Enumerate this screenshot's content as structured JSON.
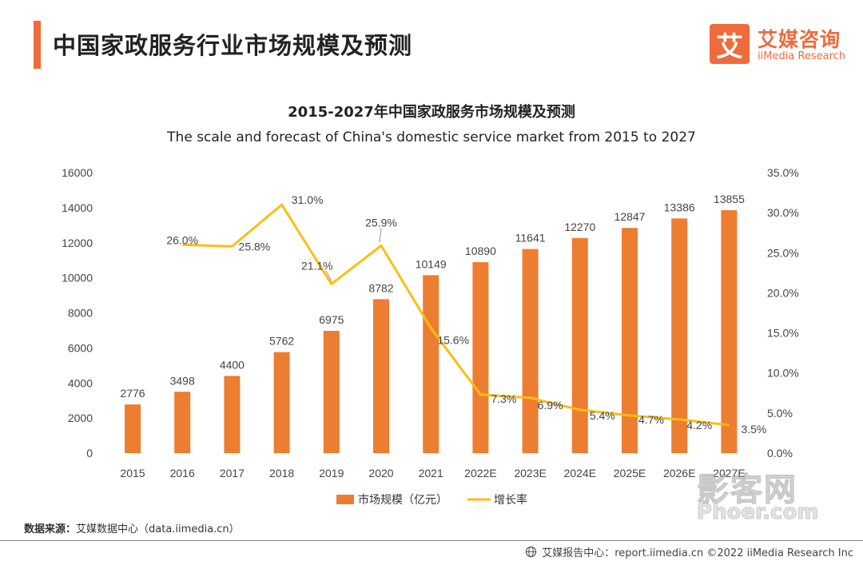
{
  "header": {
    "title": "中国家政服务行业市场规模及预测",
    "logo_mark": "艾",
    "logo_cn": "艾媒咨询",
    "logo_en": "iiMedia Research"
  },
  "colors": {
    "accent": "#ee6b3b",
    "bar": "#ed7d31",
    "line": "#fbbe13"
  },
  "chart_data": {
    "type": "bar",
    "title": "2015-2027年中国家政服务市场规模及预测",
    "subtitle": "The scale and forecast of China's domestic service market from 2015 to 2027",
    "categories": [
      "2015",
      "2016",
      "2017",
      "2018",
      "2019",
      "2020",
      "2021",
      "2022E",
      "2023E",
      "2024E",
      "2025E",
      "2026E",
      "2027E"
    ],
    "series": [
      {
        "name": "市场规模（亿元）",
        "type": "bar",
        "axis": "left",
        "values": [
          2776,
          3498,
          4400,
          5762,
          6975,
          8782,
          10149,
          10890,
          11641,
          12270,
          12847,
          13386,
          13855
        ],
        "labels": [
          "2776",
          "3498",
          "4400",
          "5762",
          "6975",
          "8782",
          "10149",
          "10890",
          "11641",
          "12270",
          "12847",
          "13386",
          "13855"
        ]
      },
      {
        "name": "增长率",
        "type": "line",
        "axis": "right",
        "values": [
          null,
          26.0,
          25.8,
          31.0,
          21.1,
          25.9,
          15.6,
          7.3,
          6.9,
          5.4,
          4.7,
          4.2,
          3.5
        ],
        "labels": [
          null,
          "26.0%",
          "25.8%",
          "31.0%",
          "21.1%",
          "25.9%",
          "15.6%",
          "7.3%",
          "6.9%",
          "5.4%",
          "4.7%",
          "4.2%",
          "3.5%"
        ]
      }
    ],
    "y_left": {
      "min": 0,
      "max": 16000,
      "ticks": [
        "0",
        "2000",
        "4000",
        "6000",
        "8000",
        "10000",
        "12000",
        "14000",
        "16000"
      ]
    },
    "y_right": {
      "min": 0,
      "max": 35,
      "ticks": [
        "0.0%",
        "5.0%",
        "10.0%",
        "15.0%",
        "20.0%",
        "25.0%",
        "30.0%",
        "35.0%"
      ]
    },
    "grid": false,
    "legend": "bottom-center"
  },
  "source": {
    "label": "数据来源：",
    "value": "艾媒数据中心（data.iimedia.cn）"
  },
  "footer": {
    "text": "艾媒报告中心：report.iimedia.cn  ©2022  iiMedia Research  Inc"
  },
  "watermark": {
    "cn": "影客网",
    "en": "Phoer.com"
  }
}
